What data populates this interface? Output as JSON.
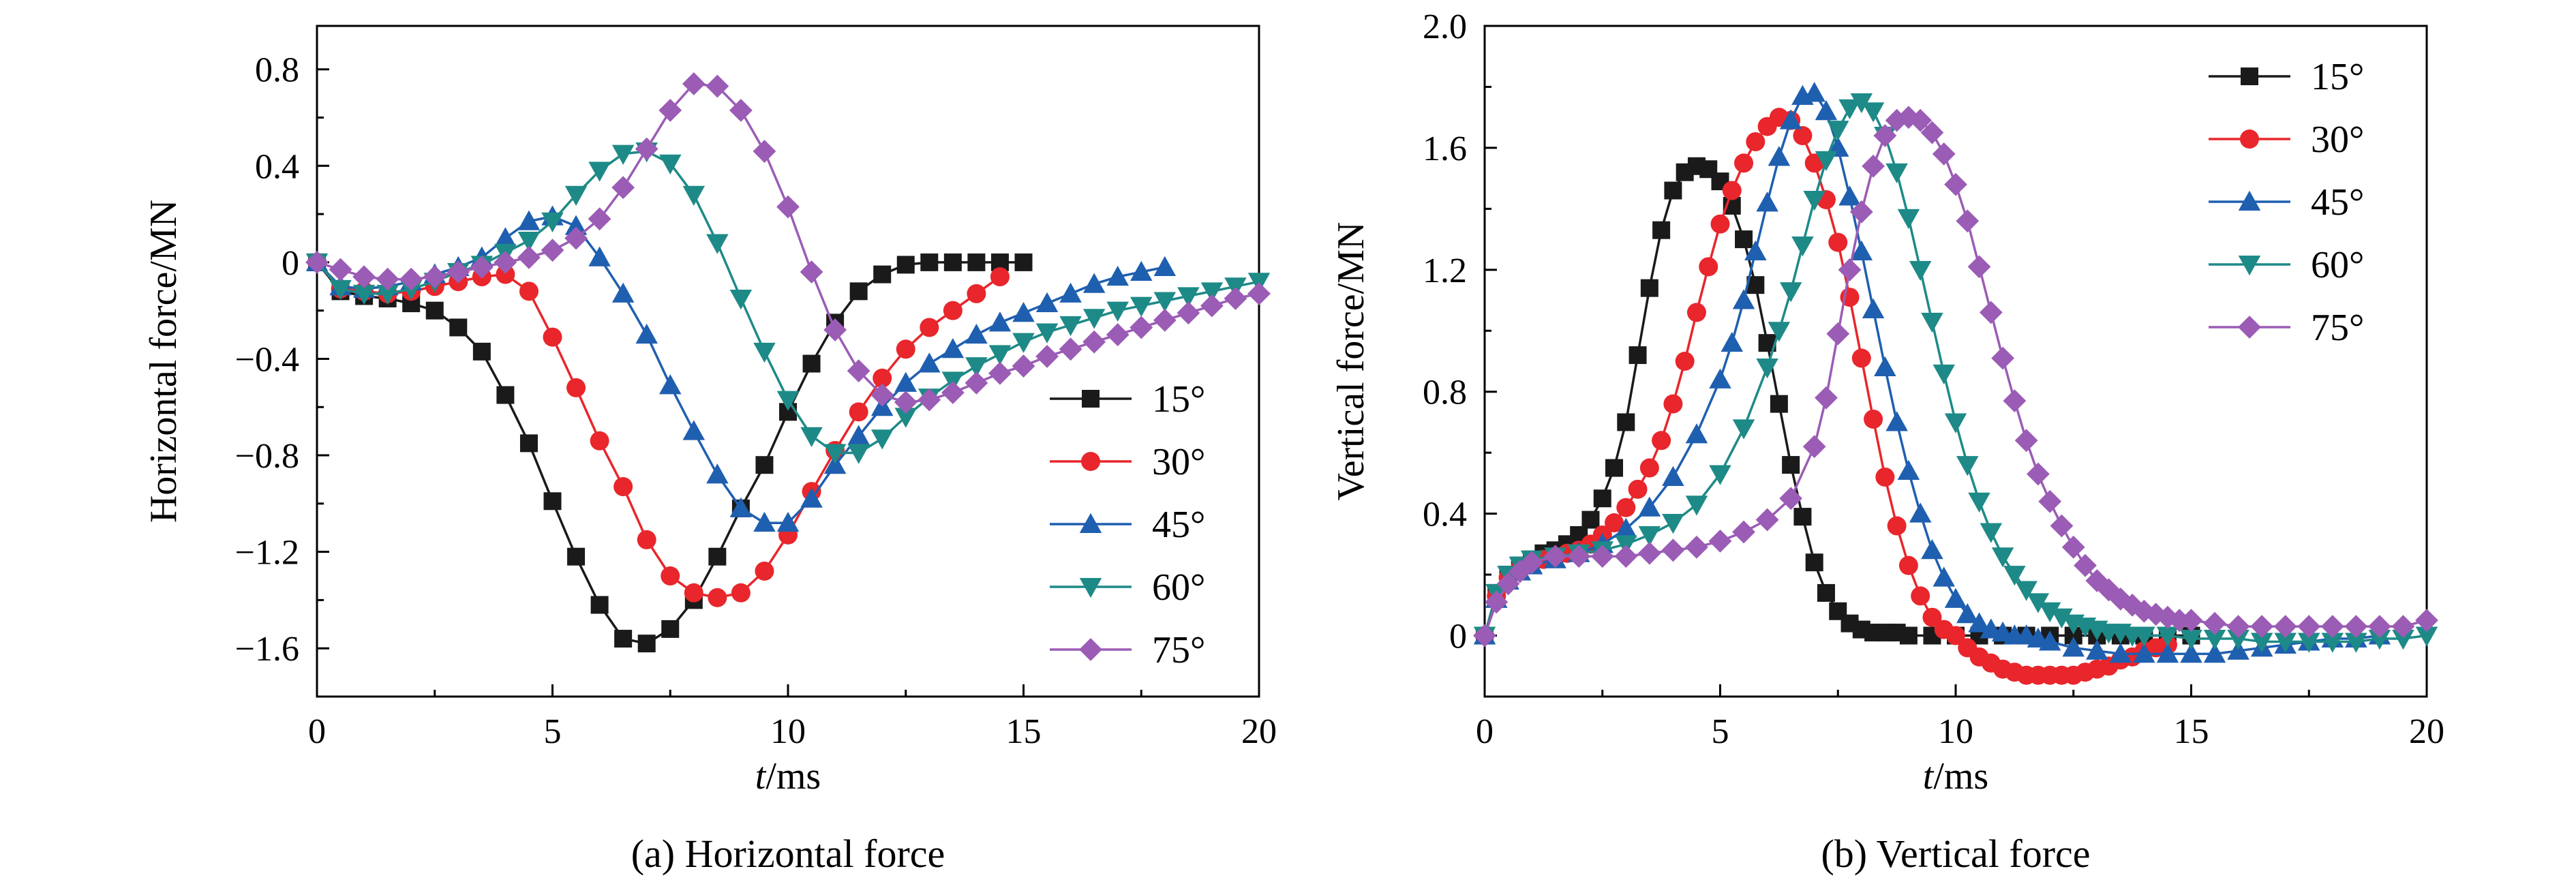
{
  "colors": {
    "15": "#1a1a1a",
    "30": "#e8262b",
    "45": "#1f5fb0",
    "60": "#1e8a87",
    "75": "#9b5cb5"
  },
  "chart_data": [
    {
      "type": "line",
      "caption": "(a) Horizontal force",
      "xlabel_italic": "t",
      "xlabel_rest": "/ms",
      "ylabel": "Horizontal force/MN",
      "xlim": [
        0,
        20
      ],
      "ylim": [
        -1.8,
        0.98
      ],
      "xticks": [
        0,
        5,
        10,
        15,
        20
      ],
      "yticks": [
        -1.6,
        -1.2,
        -0.8,
        -0.4,
        0,
        0.4,
        0.8
      ],
      "ytick_labels": [
        "−1.6",
        "−1.2",
        "−0.8",
        "−0.4",
        "0",
        "0.4",
        "0.8"
      ],
      "grid": false,
      "legend_position": "lower-right",
      "series": [
        {
          "name": "15°",
          "key": "15",
          "marker": "square",
          "x": [
            0,
            0.5,
            1,
            1.5,
            2,
            2.5,
            3,
            3.5,
            4,
            4.5,
            5,
            5.5,
            6,
            6.5,
            7,
            7.5,
            8,
            8.5,
            9,
            9.5,
            10,
            10.5,
            11,
            11.5,
            12,
            12.5,
            13,
            13.5,
            14,
            14.5,
            15
          ],
          "y": [
            0,
            -0.12,
            -0.14,
            -0.15,
            -0.17,
            -0.2,
            -0.27,
            -0.37,
            -0.55,
            -0.75,
            -0.99,
            -1.22,
            -1.42,
            -1.56,
            -1.58,
            -1.52,
            -1.4,
            -1.22,
            -1.02,
            -0.84,
            -0.62,
            -0.42,
            -0.25,
            -0.12,
            -0.05,
            -0.01,
            0,
            0,
            0,
            0,
            0
          ]
        },
        {
          "name": "30°",
          "key": "30",
          "marker": "circle",
          "x": [
            0,
            0.5,
            1,
            1.5,
            2,
            2.5,
            3,
            3.5,
            4,
            4.5,
            5,
            5.5,
            6,
            6.5,
            7,
            7.5,
            8,
            8.5,
            9,
            9.5,
            10,
            10.5,
            11,
            11.5,
            12,
            12.5,
            13,
            13.5,
            14,
            14.5
          ],
          "y": [
            0,
            -0.11,
            -0.12,
            -0.13,
            -0.12,
            -0.1,
            -0.08,
            -0.06,
            -0.05,
            -0.12,
            -0.31,
            -0.52,
            -0.74,
            -0.93,
            -1.15,
            -1.3,
            -1.37,
            -1.39,
            -1.37,
            -1.28,
            -1.13,
            -0.95,
            -0.78,
            -0.62,
            -0.48,
            -0.36,
            -0.27,
            -0.2,
            -0.13,
            -0.06
          ]
        },
        {
          "name": "45°",
          "key": "45",
          "marker": "triangle-up",
          "x": [
            0,
            0.5,
            1,
            1.5,
            2,
            2.5,
            3,
            3.5,
            4,
            4.5,
            5,
            5.5,
            6,
            6.5,
            7,
            7.5,
            8,
            8.5,
            9,
            9.5,
            10,
            10.5,
            11,
            11.5,
            12,
            12.5,
            13,
            13.5,
            14,
            14.5,
            15,
            15.5,
            16,
            16.5,
            17,
            17.5,
            18
          ],
          "y": [
            0,
            -0.1,
            -0.11,
            -0.1,
            -0.08,
            -0.05,
            -0.02,
            0.02,
            0.1,
            0.17,
            0.19,
            0.15,
            0.02,
            -0.13,
            -0.3,
            -0.51,
            -0.7,
            -0.88,
            -1.02,
            -1.08,
            -1.08,
            -0.98,
            -0.84,
            -0.72,
            -0.6,
            -0.5,
            -0.42,
            -0.36,
            -0.3,
            -0.25,
            -0.21,
            -0.17,
            -0.13,
            -0.09,
            -0.06,
            -0.04,
            -0.02
          ]
        },
        {
          "name": "60°",
          "key": "60",
          "marker": "triangle-down",
          "x": [
            0,
            0.5,
            1,
            1.5,
            2,
            2.5,
            3,
            3.5,
            4,
            4.5,
            5,
            5.5,
            6,
            6.5,
            7,
            7.5,
            8,
            8.5,
            9,
            9.5,
            10,
            10.5,
            11,
            11.5,
            12,
            12.5,
            13,
            13.5,
            14,
            14.5,
            15,
            15.5,
            16,
            16.5,
            17,
            17.5,
            18,
            18.5,
            19,
            19.5,
            20
          ],
          "y": [
            0,
            -0.11,
            -0.13,
            -0.13,
            -0.11,
            -0.08,
            -0.04,
            -0.01,
            0.04,
            0.09,
            0.17,
            0.28,
            0.38,
            0.45,
            0.46,
            0.41,
            0.28,
            0.08,
            -0.15,
            -0.37,
            -0.57,
            -0.72,
            -0.79,
            -0.79,
            -0.73,
            -0.64,
            -0.56,
            -0.49,
            -0.43,
            -0.38,
            -0.33,
            -0.29,
            -0.26,
            -0.23,
            -0.2,
            -0.18,
            -0.16,
            -0.14,
            -0.12,
            -0.1,
            -0.08
          ]
        },
        {
          "name": "75°",
          "key": "75",
          "marker": "diamond",
          "x": [
            0,
            0.5,
            1,
            1.5,
            2,
            2.5,
            3,
            3.5,
            4,
            4.5,
            5,
            5.5,
            6,
            6.5,
            7,
            7.5,
            8,
            8.5,
            9,
            9.5,
            10,
            10.5,
            11,
            11.5,
            12,
            12.5,
            13,
            13.5,
            14,
            14.5,
            15,
            15.5,
            16,
            16.5,
            17,
            17.5,
            18,
            18.5,
            19,
            19.5,
            20
          ],
          "y": [
            0,
            -0.03,
            -0.06,
            -0.07,
            -0.07,
            -0.06,
            -0.04,
            -0.02,
            0,
            0.02,
            0.05,
            0.1,
            0.18,
            0.31,
            0.47,
            0.63,
            0.74,
            0.73,
            0.63,
            0.46,
            0.23,
            -0.04,
            -0.28,
            -0.45,
            -0.55,
            -0.58,
            -0.57,
            -0.54,
            -0.5,
            -0.46,
            -0.43,
            -0.39,
            -0.36,
            -0.33,
            -0.3,
            -0.27,
            -0.24,
            -0.21,
            -0.18,
            -0.15,
            -0.13
          ]
        }
      ]
    },
    {
      "type": "line",
      "caption": "(b) Vertical force",
      "xlabel_italic": "t",
      "xlabel_rest": "/ms",
      "ylabel": "Vertical force/MN",
      "xlim": [
        0,
        20
      ],
      "ylim": [
        -0.2,
        2.0
      ],
      "xticks": [
        0,
        5,
        10,
        15,
        20
      ],
      "yticks": [
        0,
        0.4,
        0.8,
        1.2,
        1.6,
        2.0
      ],
      "ytick_labels": [
        "0",
        "0.4",
        "0.8",
        "1.2",
        "1.6",
        "2.0"
      ],
      "grid": false,
      "legend_position": "upper-right",
      "series": [
        {
          "name": "15°",
          "key": "15",
          "marker": "square",
          "x": [
            0,
            0.25,
            0.5,
            0.75,
            1,
            1.25,
            1.5,
            1.75,
            2,
            2.25,
            2.5,
            2.75,
            3,
            3.25,
            3.5,
            3.75,
            4,
            4.25,
            4.5,
            4.75,
            5,
            5.25,
            5.5,
            5.75,
            6,
            6.25,
            6.5,
            6.75,
            7,
            7.25,
            7.5,
            7.75,
            8,
            8.25,
            8.5,
            8.75,
            9,
            9.5,
            10,
            10.5,
            11,
            11.5,
            12,
            12.5,
            13,
            13.5,
            14,
            14.5,
            15
          ],
          "y": [
            0,
            0.14,
            0.2,
            0.23,
            0.25,
            0.27,
            0.28,
            0.3,
            0.33,
            0.38,
            0.45,
            0.55,
            0.7,
            0.92,
            1.14,
            1.33,
            1.46,
            1.52,
            1.54,
            1.53,
            1.49,
            1.41,
            1.3,
            1.15,
            0.96,
            0.76,
            0.56,
            0.39,
            0.24,
            0.14,
            0.08,
            0.04,
            0.02,
            0.01,
            0.01,
            0.01,
            0,
            0,
            0,
            0,
            0,
            0,
            0,
            0,
            0,
            0,
            0,
            0,
            0
          ]
        },
        {
          "name": "30°",
          "key": "30",
          "marker": "circle",
          "x": [
            0,
            0.25,
            0.5,
            0.75,
            1,
            1.25,
            1.5,
            1.75,
            2,
            2.25,
            2.5,
            2.75,
            3,
            3.25,
            3.5,
            3.75,
            4,
            4.25,
            4.5,
            4.75,
            5,
            5.25,
            5.5,
            5.75,
            6,
            6.25,
            6.5,
            6.75,
            7,
            7.25,
            7.5,
            7.75,
            8,
            8.25,
            8.5,
            8.75,
            9,
            9.25,
            9.5,
            9.75,
            10,
            10.25,
            10.5,
            10.75,
            11,
            11.25,
            11.5,
            11.75,
            12,
            12.25,
            12.5,
            12.75,
            13,
            13.25,
            13.5,
            13.75,
            14,
            14.25,
            14.5
          ],
          "y": [
            0,
            0.13,
            0.19,
            0.22,
            0.24,
            0.25,
            0.26,
            0.27,
            0.28,
            0.3,
            0.33,
            0.37,
            0.42,
            0.48,
            0.55,
            0.64,
            0.76,
            0.9,
            1.06,
            1.21,
            1.35,
            1.46,
            1.55,
            1.62,
            1.67,
            1.7,
            1.69,
            1.64,
            1.55,
            1.43,
            1.29,
            1.11,
            0.91,
            0.71,
            0.52,
            0.36,
            0.23,
            0.13,
            0.06,
            0.02,
            0,
            -0.04,
            -0.07,
            -0.09,
            -0.11,
            -0.12,
            -0.13,
            -0.13,
            -0.13,
            -0.13,
            -0.13,
            -0.12,
            -0.11,
            -0.1,
            -0.08,
            -0.07,
            -0.05,
            -0.04,
            -0.03
          ]
        },
        {
          "name": "45°",
          "key": "45",
          "marker": "triangle-up",
          "x": [
            0,
            0.25,
            0.5,
            0.75,
            1,
            1.5,
            2,
            2.5,
            3,
            3.5,
            4,
            4.5,
            5,
            5.25,
            5.5,
            5.75,
            6,
            6.25,
            6.5,
            6.75,
            7,
            7.25,
            7.5,
            7.75,
            8,
            8.25,
            8.5,
            8.75,
            9,
            9.25,
            9.5,
            9.75,
            10,
            10.25,
            10.5,
            10.75,
            11,
            11.25,
            11.5,
            11.75,
            12,
            12.5,
            13,
            13.5,
            14,
            14.5,
            15,
            15.5,
            16,
            16.5,
            17,
            17.5,
            18,
            18.5,
            19
          ],
          "y": [
            0,
            0.12,
            0.18,
            0.21,
            0.23,
            0.25,
            0.27,
            0.3,
            0.35,
            0.42,
            0.52,
            0.66,
            0.84,
            0.96,
            1.1,
            1.26,
            1.42,
            1.57,
            1.69,
            1.77,
            1.78,
            1.72,
            1.6,
            1.44,
            1.26,
            1.07,
            0.88,
            0.7,
            0.54,
            0.4,
            0.28,
            0.19,
            0.12,
            0.07,
            0.04,
            0.02,
            0.01,
            0,
            0,
            -0.01,
            -0.02,
            -0.04,
            -0.05,
            -0.06,
            -0.06,
            -0.06,
            -0.06,
            -0.06,
            -0.05,
            -0.04,
            -0.03,
            -0.02,
            -0.01,
            -0.01,
            0
          ]
        },
        {
          "name": "60°",
          "key": "60",
          "marker": "triangle-down",
          "x": [
            0,
            0.25,
            0.5,
            0.75,
            1,
            1.5,
            2,
            2.5,
            3,
            3.5,
            4,
            4.5,
            5,
            5.5,
            6,
            6.25,
            6.5,
            6.75,
            7,
            7.25,
            7.5,
            7.75,
            8,
            8.25,
            8.5,
            8.75,
            9,
            9.25,
            9.5,
            9.75,
            10,
            10.25,
            10.5,
            10.75,
            11,
            11.25,
            11.5,
            11.75,
            12,
            12.25,
            12.5,
            12.75,
            13,
            13.25,
            13.5,
            13.75,
            14,
            14.5,
            15,
            15.5,
            16,
            16.5,
            17,
            17.5,
            18,
            18.5,
            19,
            19.5,
            20
          ],
          "y": [
            0,
            0.14,
            0.2,
            0.23,
            0.25,
            0.26,
            0.27,
            0.28,
            0.3,
            0.33,
            0.37,
            0.43,
            0.53,
            0.68,
            0.88,
            1.0,
            1.13,
            1.28,
            1.43,
            1.56,
            1.66,
            1.73,
            1.75,
            1.72,
            1.64,
            1.52,
            1.37,
            1.2,
            1.03,
            0.86,
            0.7,
            0.56,
            0.44,
            0.34,
            0.26,
            0.2,
            0.15,
            0.11,
            0.08,
            0.06,
            0.04,
            0.03,
            0.02,
            0.01,
            0.01,
            0,
            0,
            0,
            -0.01,
            -0.01,
            -0.01,
            -0.02,
            -0.02,
            -0.02,
            -0.02,
            -0.02,
            -0.01,
            -0.01,
            0
          ]
        },
        {
          "name": "75°",
          "key": "75",
          "marker": "diamond",
          "x": [
            0,
            0.25,
            0.5,
            0.75,
            1,
            1.5,
            2,
            2.5,
            3,
            3.5,
            4,
            4.5,
            5,
            5.5,
            6,
            6.5,
            7,
            7.25,
            7.5,
            7.75,
            8,
            8.25,
            8.5,
            8.75,
            9,
            9.25,
            9.5,
            9.75,
            10,
            10.25,
            10.5,
            10.75,
            11,
            11.25,
            11.5,
            11.75,
            12,
            12.25,
            12.5,
            12.75,
            13,
            13.25,
            13.5,
            13.75,
            14,
            14.25,
            14.5,
            14.75,
            15,
            15.5,
            16,
            16.5,
            17,
            17.5,
            18,
            18.5,
            19,
            19.5,
            20
          ],
          "y": [
            0,
            0.11,
            0.17,
            0.21,
            0.24,
            0.26,
            0.26,
            0.26,
            0.26,
            0.27,
            0.28,
            0.29,
            0.31,
            0.34,
            0.38,
            0.45,
            0.62,
            0.78,
            0.99,
            1.2,
            1.39,
            1.54,
            1.64,
            1.69,
            1.7,
            1.69,
            1.65,
            1.58,
            1.48,
            1.36,
            1.21,
            1.06,
            0.91,
            0.77,
            0.64,
            0.53,
            0.44,
            0.36,
            0.29,
            0.23,
            0.18,
            0.15,
            0.12,
            0.1,
            0.08,
            0.07,
            0.06,
            0.05,
            0.05,
            0.04,
            0.03,
            0.03,
            0.03,
            0.03,
            0.03,
            0.03,
            0.03,
            0.03,
            0.05
          ]
        }
      ]
    }
  ]
}
